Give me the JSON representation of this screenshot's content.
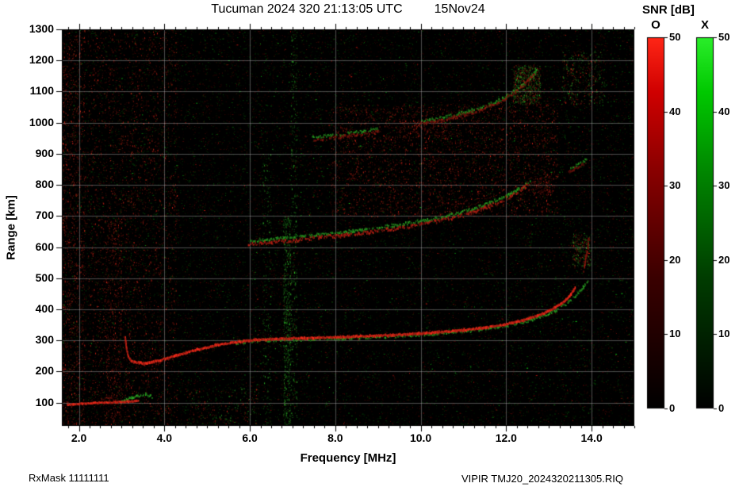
{
  "header": {
    "title": "Tucuman 2024 320 21:13:05 UTC",
    "date": "15Nov24"
  },
  "footer": {
    "rx_mask": "RxMask 11111111",
    "file_id": "VIPIR  TMJ20_2024320211305.RIQ"
  },
  "chart_data": {
    "type": "scatter",
    "title": "Tucuman 2024 320 21:13:05 UTC",
    "subtitle": "15Nov24",
    "xlabel": "Frequency [MHz]",
    "ylabel": "Range [km]",
    "xlim": [
      1.6,
      15.0
    ],
    "ylim": [
      25,
      1300
    ],
    "grid": true,
    "x_minor_step": 0.25,
    "x_ticks": [
      {
        "v": 2,
        "label": "2.0"
      },
      {
        "v": 4,
        "label": "4.0"
      },
      {
        "v": 6,
        "label": "6.0"
      },
      {
        "v": 8,
        "label": "8.0"
      },
      {
        "v": 10,
        "label": "10.0"
      },
      {
        "v": 12,
        "label": "12.0"
      },
      {
        "v": 14,
        "label": "14.0"
      }
    ],
    "y_ticks": [
      {
        "v": 100,
        "label": "100"
      },
      {
        "v": 200,
        "label": "200"
      },
      {
        "v": 300,
        "label": "300"
      },
      {
        "v": 400,
        "label": "400"
      },
      {
        "v": 500,
        "label": "500"
      },
      {
        "v": 600,
        "label": "600"
      },
      {
        "v": 700,
        "label": "700"
      },
      {
        "v": 800,
        "label": "800"
      },
      {
        "v": 900,
        "label": "900"
      },
      {
        "v": 1000,
        "label": "1000"
      },
      {
        "v": 1100,
        "label": "1100"
      },
      {
        "v": 1200,
        "label": "1200"
      },
      {
        "v": 1300,
        "label": "1300"
      }
    ],
    "colorbar": {
      "title": "SNR [dB]",
      "min": 0,
      "max": 50,
      "ticks": [
        {
          "v": 0,
          "label": "0"
        },
        {
          "v": 10,
          "label": "10"
        },
        {
          "v": 20,
          "label": "20"
        },
        {
          "v": 30,
          "label": "30"
        },
        {
          "v": 40,
          "label": "40"
        },
        {
          "v": 50,
          "label": "50"
        }
      ],
      "bars": [
        {
          "label": "O",
          "color": "#ff2616"
        },
        {
          "label": "X",
          "color": "#2aee2a"
        }
      ]
    },
    "series": [
      {
        "name": "Es trace O",
        "mode": "O",
        "width": 2.4,
        "alpha": 0.95,
        "speckle": 0,
        "points": [
          [
            1.72,
            92
          ],
          [
            2.05,
            96
          ],
          [
            2.45,
            99
          ],
          [
            2.85,
            101
          ],
          [
            3.15,
            103
          ],
          [
            3.38,
            105
          ]
        ]
      },
      {
        "name": "Es trace X",
        "mode": "X",
        "width": 2.0,
        "alpha": 0.8,
        "speckle": 1,
        "points": [
          [
            2.95,
            103
          ],
          [
            3.15,
            112
          ],
          [
            3.35,
            121
          ],
          [
            3.55,
            127
          ],
          [
            3.7,
            118
          ]
        ]
      },
      {
        "name": "F cusp O",
        "mode": "O",
        "width": 2.6,
        "alpha": 0.85,
        "speckle": 0,
        "points": [
          [
            3.07,
            310
          ],
          [
            3.1,
            275
          ],
          [
            3.14,
            248
          ],
          [
            3.22,
            232
          ]
        ]
      },
      {
        "name": "F 1-hop O",
        "mode": "O",
        "width": 2.8,
        "alpha": 1.0,
        "speckle": 0,
        "points": [
          [
            3.22,
            232
          ],
          [
            3.5,
            226
          ],
          [
            3.8,
            233
          ],
          [
            4.2,
            248
          ],
          [
            4.7,
            268
          ],
          [
            5.2,
            284
          ],
          [
            5.7,
            295
          ],
          [
            6.2,
            302
          ],
          [
            7.0,
            306
          ],
          [
            8.0,
            310
          ],
          [
            9.0,
            315
          ],
          [
            9.8,
            320
          ],
          [
            10.5,
            327
          ],
          [
            11.0,
            333
          ],
          [
            11.5,
            341
          ],
          [
            12.0,
            352
          ],
          [
            12.4,
            365
          ],
          [
            12.8,
            383
          ],
          [
            13.1,
            403
          ],
          [
            13.35,
            425
          ],
          [
            13.5,
            448
          ],
          [
            13.6,
            468
          ]
        ]
      },
      {
        "name": "F 1-hop X",
        "mode": "X",
        "width": 2.0,
        "alpha": 0.7,
        "speckle": 1,
        "points": [
          [
            5.6,
            291
          ],
          [
            6.2,
            298
          ],
          [
            7.0,
            302
          ],
          [
            8.0,
            306
          ],
          [
            9.0,
            311
          ],
          [
            9.8,
            316
          ],
          [
            10.5,
            323
          ],
          [
            11.1,
            330
          ],
          [
            11.6,
            338
          ],
          [
            12.1,
            350
          ],
          [
            12.5,
            363
          ],
          [
            12.9,
            381
          ],
          [
            13.2,
            400
          ],
          [
            13.45,
            422
          ],
          [
            13.65,
            448
          ],
          [
            13.8,
            472
          ],
          [
            13.9,
            493
          ]
        ]
      },
      {
        "name": "F tip spread O",
        "mode": "O",
        "width": 3.0,
        "alpha": 0.6,
        "speckle": 1,
        "points": [
          [
            13.8,
            525
          ],
          [
            13.85,
            562
          ],
          [
            13.9,
            600
          ],
          [
            13.93,
            634
          ]
        ]
      },
      {
        "name": "2-hop O",
        "mode": "O",
        "width": 2.4,
        "alpha": 0.75,
        "speckle": 1,
        "points": [
          [
            5.9,
            608
          ],
          [
            6.5,
            615
          ],
          [
            7.0,
            621
          ],
          [
            7.6,
            629
          ],
          [
            8.2,
            638
          ],
          [
            8.8,
            648
          ],
          [
            9.4,
            659
          ],
          [
            10.0,
            672
          ],
          [
            10.5,
            686
          ],
          [
            11.0,
            702
          ],
          [
            11.4,
            720
          ],
          [
            11.8,
            743
          ],
          [
            12.1,
            764
          ],
          [
            12.35,
            785
          ],
          [
            12.5,
            801
          ]
        ]
      },
      {
        "name": "2-hop X",
        "mode": "X",
        "width": 2.2,
        "alpha": 0.7,
        "speckle": 1,
        "points": [
          [
            6.0,
            620
          ],
          [
            6.6,
            627
          ],
          [
            7.2,
            634
          ],
          [
            7.8,
            642
          ],
          [
            8.4,
            651
          ],
          [
            9.0,
            662
          ],
          [
            9.6,
            674
          ],
          [
            10.2,
            688
          ],
          [
            10.7,
            703
          ],
          [
            11.2,
            721
          ],
          [
            11.6,
            742
          ],
          [
            12.0,
            765
          ],
          [
            12.3,
            787
          ],
          [
            12.55,
            809
          ]
        ]
      },
      {
        "name": "3-hop a O",
        "mode": "O",
        "width": 2.0,
        "alpha": 0.55,
        "speckle": 1,
        "points": [
          [
            7.45,
            944
          ],
          [
            8.0,
            952
          ],
          [
            8.5,
            960
          ],
          [
            9.0,
            970
          ]
        ]
      },
      {
        "name": "3-hop a X",
        "mode": "X",
        "width": 2.0,
        "alpha": 0.7,
        "speckle": 1,
        "points": [
          [
            7.45,
            952
          ],
          [
            8.0,
            960
          ],
          [
            8.5,
            969
          ],
          [
            9.0,
            979
          ]
        ]
      },
      {
        "name": "3-hop b O",
        "mode": "O",
        "width": 2.2,
        "alpha": 0.6,
        "speckle": 1,
        "points": [
          [
            9.9,
            992
          ],
          [
            10.5,
            1008
          ],
          [
            11.0,
            1024
          ],
          [
            11.5,
            1046
          ],
          [
            11.9,
            1072
          ],
          [
            12.2,
            1098
          ],
          [
            12.45,
            1128
          ],
          [
            12.65,
            1158
          ]
        ]
      },
      {
        "name": "3-hop b X",
        "mode": "X",
        "width": 2.2,
        "alpha": 0.7,
        "speckle": 1,
        "points": [
          [
            10.0,
            1002
          ],
          [
            10.6,
            1018
          ],
          [
            11.1,
            1036
          ],
          [
            11.6,
            1058
          ],
          [
            12.0,
            1084
          ],
          [
            12.3,
            1112
          ],
          [
            12.55,
            1142
          ],
          [
            12.72,
            1172
          ]
        ]
      },
      {
        "name": "high dash X",
        "mode": "X",
        "width": 2.0,
        "alpha": 0.7,
        "speckle": 1,
        "points": [
          [
            13.5,
            852
          ],
          [
            13.7,
            867
          ],
          [
            13.9,
            884
          ]
        ]
      },
      {
        "name": "high dash O",
        "mode": "O",
        "width": 2.0,
        "alpha": 0.45,
        "speckle": 1,
        "points": [
          [
            13.45,
            842
          ],
          [
            13.65,
            856
          ],
          [
            13.85,
            871
          ]
        ]
      }
    ],
    "noise_regions": [
      {
        "f": [
          1.6,
          2.15
        ],
        "km": [
          25,
          1300
        ],
        "mode": "O",
        "density": 0.35
      },
      {
        "f": [
          2.2,
          4.3
        ],
        "km": [
          25,
          1300
        ],
        "mode": "O",
        "density": 0.16
      },
      {
        "f": [
          2.6,
          3.0
        ],
        "km": [
          25,
          700
        ],
        "mode": "O",
        "density": 0.3
      },
      {
        "f": [
          6.78,
          6.95
        ],
        "km": [
          25,
          700
        ],
        "mode": "X",
        "density": 0.9
      },
      {
        "f": [
          6.95,
          7.1
        ],
        "km": [
          25,
          1300
        ],
        "mode": "X",
        "density": 0.3
      },
      {
        "f": [
          6.3,
          6.5
        ],
        "km": [
          25,
          900
        ],
        "mode": "X",
        "density": 0.18
      },
      {
        "f": [
          7.9,
          13.2
        ],
        "km": [
          700,
          1060
        ],
        "mode": "O",
        "density": 0.26
      },
      {
        "f": [
          9.5,
          10.6
        ],
        "km": [
          950,
          1010
        ],
        "mode": "O",
        "density": 0.35
      },
      {
        "f": [
          12.15,
          12.8
        ],
        "km": [
          1060,
          1185
        ],
        "mode": "mixed",
        "density": 1.5
      },
      {
        "f": [
          13.55,
          13.98
        ],
        "km": [
          540,
          645
        ],
        "mode": "mixed",
        "density": 1.1
      },
      {
        "f": [
          13.3,
          14.3
        ],
        "km": [
          1060,
          1230
        ],
        "mode": "mixed",
        "density": 0.4
      },
      {
        "f": [
          12.5,
          13.1
        ],
        "km": [
          770,
          830
        ],
        "mode": "O",
        "density": 0.45
      },
      {
        "f": [
          4.5,
          6.2
        ],
        "km": [
          25,
          150
        ],
        "mode": "mixed",
        "density": 0.2
      }
    ],
    "background_noise": {
      "seed": 88841,
      "count": 26000
    }
  }
}
